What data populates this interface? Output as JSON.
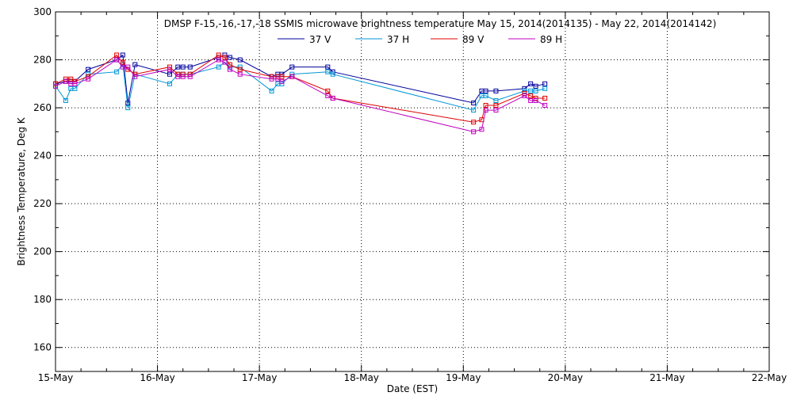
{
  "chart_data": {
    "type": "line",
    "title": "DMSP F-15,-16,-17,-18 SSMIS microwave brightness temperature May 15, 2014(2014135) - May 22, 2014(2014142)",
    "xlabel": "Date (EST)",
    "ylabel": "Brightness Temperature, Deg K",
    "x_tick_labels": [
      "15-May",
      "16-May",
      "17-May",
      "18-May",
      "19-May",
      "20-May",
      "21-May",
      "22-May"
    ],
    "y_ticks": [
      160,
      180,
      200,
      220,
      240,
      260,
      280,
      300
    ],
    "xlim": [
      0,
      7
    ],
    "ylim": [
      150,
      300
    ],
    "grid": true,
    "legend_position": "top",
    "series": [
      {
        "name": "37 V",
        "color": "#00009c",
        "x": [
          0.0,
          0.1,
          0.15,
          0.19,
          0.32,
          0.6,
          0.66,
          0.71,
          0.78,
          1.12,
          1.2,
          1.25,
          1.32,
          1.6,
          1.66,
          1.71,
          1.81,
          2.12,
          2.18,
          2.22,
          2.32,
          2.67,
          2.72,
          4.1,
          4.18,
          4.22,
          4.32,
          4.6,
          4.66,
          4.71,
          4.8
        ],
        "y": [
          270,
          271,
          271,
          271,
          276,
          280,
          282,
          262,
          278,
          274,
          277,
          277,
          277,
          281,
          282,
          281,
          280,
          273,
          274,
          274,
          277,
          277,
          275,
          262,
          267,
          267,
          267,
          268,
          270,
          269,
          270
        ]
      },
      {
        "name": "37 H",
        "color": "#0096d6",
        "x": [
          0.0,
          0.1,
          0.15,
          0.19,
          0.32,
          0.6,
          0.66,
          0.71,
          0.78,
          1.12,
          1.2,
          1.25,
          1.32,
          1.6,
          1.66,
          1.71,
          1.81,
          2.12,
          2.18,
          2.22,
          2.32,
          2.67,
          2.72,
          4.1,
          4.18,
          4.22,
          4.32,
          4.6,
          4.66,
          4.71,
          4.8
        ],
        "y": [
          269,
          263,
          268,
          268,
          274,
          275,
          278,
          260,
          274,
          270,
          274,
          274,
          274,
          277,
          279,
          277,
          277,
          267,
          270,
          270,
          274,
          275,
          274,
          259,
          265,
          265,
          263,
          267,
          267,
          267,
          268
        ]
      },
      {
        "name": "89 V",
        "color": "#e00000",
        "x": [
          0.0,
          0.1,
          0.15,
          0.19,
          0.32,
          0.6,
          0.66,
          0.71,
          0.78,
          1.12,
          1.2,
          1.25,
          1.32,
          1.6,
          1.66,
          1.71,
          1.81,
          2.12,
          2.18,
          2.22,
          2.32,
          2.67,
          2.72,
          4.1,
          4.18,
          4.22,
          4.32,
          4.6,
          4.66,
          4.71,
          4.8
        ],
        "y": [
          270,
          272,
          272,
          271,
          273,
          282,
          279,
          276,
          274,
          277,
          274,
          274,
          274,
          282,
          281,
          278,
          276,
          273,
          273,
          273,
          273,
          267,
          264,
          254,
          255,
          261,
          261,
          266,
          265,
          264,
          264
        ]
      },
      {
        "name": "89 H",
        "color": "#c000c0",
        "x": [
          0.0,
          0.1,
          0.15,
          0.19,
          0.32,
          0.6,
          0.66,
          0.71,
          0.78,
          1.12,
          1.2,
          1.25,
          1.32,
          1.6,
          1.66,
          1.71,
          1.81,
          2.12,
          2.18,
          2.22,
          2.32,
          2.67,
          2.72,
          4.1,
          4.18,
          4.22,
          4.32,
          4.6,
          4.66,
          4.71,
          4.8
        ],
        "y": [
          269,
          271,
          270,
          270,
          272,
          280,
          277,
          277,
          273,
          276,
          273,
          273,
          273,
          280,
          279,
          276,
          274,
          272,
          272,
          271,
          273,
          265,
          264,
          250,
          251,
          259,
          259,
          265,
          263,
          263,
          261
        ]
      }
    ]
  }
}
